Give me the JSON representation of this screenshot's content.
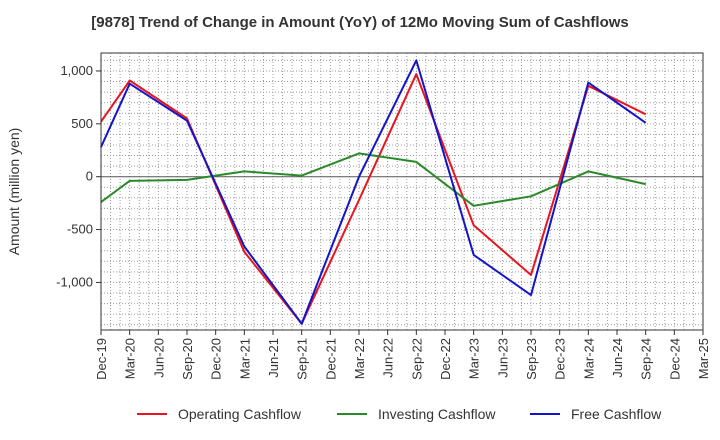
{
  "chart_data": {
    "type": "line",
    "title": "[9878]  Trend of Change in Amount (YoY) of 12Mo Moving Sum of Cashflows",
    "xlabel": "",
    "ylabel": "Amount (million yen)",
    "ylim": [
      -1450,
      1170
    ],
    "yticks": [
      1000,
      500,
      0,
      -500,
      -1000
    ],
    "ytick_labels": [
      "1,000",
      "500",
      "0",
      "-500",
      "-1,000"
    ],
    "categories": [
      "Dec-19",
      "Mar-20",
      "Jun-20",
      "Sep-20",
      "Dec-20",
      "Mar-21",
      "Jun-21",
      "Sep-21",
      "Dec-21",
      "Mar-22",
      "Jun-22",
      "Sep-22",
      "Dec-22",
      "Mar-23",
      "Jun-23",
      "Sep-23",
      "Dec-23",
      "Mar-24",
      "Jun-24",
      "Sep-24",
      "Dec-24",
      "Mar-25"
    ],
    "grid": true,
    "legend_position": "bottom",
    "series": [
      {
        "name": "Operating Cashflow",
        "color": "#e8141e",
        "values": [
          520,
          910,
          null,
          550,
          null,
          -710,
          null,
          -1390,
          null,
          -220,
          null,
          970,
          null,
          -460,
          null,
          -930,
          null,
          860,
          null,
          590,
          null,
          null
        ]
      },
      {
        "name": "Investing Cashflow",
        "color": "#2a8a2a",
        "values": [
          -240,
          -40,
          null,
          -30,
          null,
          50,
          null,
          10,
          null,
          220,
          null,
          140,
          null,
          -275,
          null,
          -185,
          null,
          50,
          null,
          -70,
          null,
          null
        ]
      },
      {
        "name": "Free Cashflow",
        "color": "#1414c8",
        "values": [
          280,
          880,
          null,
          530,
          null,
          -660,
          null,
          -1390,
          null,
          0,
          null,
          1100,
          null,
          -740,
          null,
          -1120,
          null,
          890,
          null,
          510,
          null,
          null
        ]
      }
    ]
  }
}
